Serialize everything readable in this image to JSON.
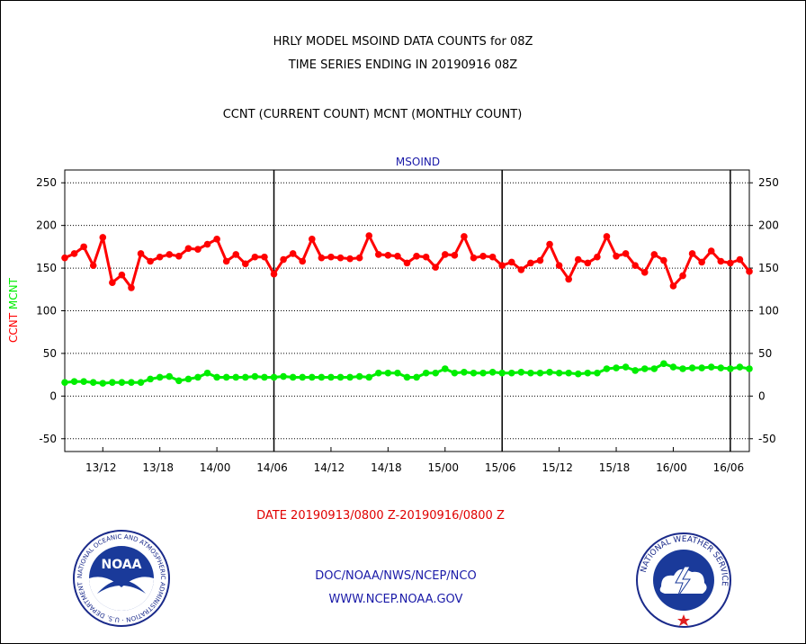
{
  "header": {
    "title_line1": "HRLY MODEL MSOIND DATA COUNTS for 08Z",
    "title_line2": "TIME SERIES ENDING IN 20190916 08Z",
    "subtitle": "CCNT (CURRENT COUNT) MCNT (MONTHLY COUNT)"
  },
  "footer": {
    "date_range": "DATE 20190913/0800 Z-20190916/0800 Z",
    "agency": "DOC/NOAA/NWS/NCEP/NCO",
    "website": "WWW.NCEP.NOAA.GOV"
  },
  "logos": {
    "noaa_text": "NOAA",
    "noaa_ring": "NATIONAL OCEANIC AND ATMOSPHERIC ADMINISTRATION · U.S. DEPARTMENT OF COMMERCE",
    "nws_ring": "NATIONAL WEATHER SERVICE"
  },
  "colors": {
    "ccnt": "#ff0000",
    "mcnt": "#00ee00",
    "title_blue": "#1a1aa8",
    "grid": "#000000"
  },
  "chart_data": {
    "type": "line",
    "title": "MSOIND",
    "ylabel_left_parts": [
      "CCNT",
      "MCNT"
    ],
    "ylim": [
      -65,
      265
    ],
    "yticks": [
      -50,
      0,
      50,
      100,
      150,
      200,
      250
    ],
    "grid": "dotted-horizontal",
    "xlim": [
      0,
      72
    ],
    "xticks": [
      {
        "x": 4,
        "label": "13/12"
      },
      {
        "x": 10,
        "label": "13/18"
      },
      {
        "x": 16,
        "label": "14/00"
      },
      {
        "x": 22,
        "label": "14/06"
      },
      {
        "x": 28,
        "label": "14/12"
      },
      {
        "x": 34,
        "label": "14/18"
      },
      {
        "x": 40,
        "label": "15/00"
      },
      {
        "x": 46,
        "label": "15/06"
      },
      {
        "x": 52,
        "label": "15/12"
      },
      {
        "x": 58,
        "label": "15/18"
      },
      {
        "x": 64,
        "label": "16/00"
      },
      {
        "x": 70,
        "label": "16/06"
      }
    ],
    "day_boundaries": [
      22,
      46,
      70
    ],
    "series": [
      {
        "name": "CCNT",
        "color": "#ff0000",
        "values": [
          162,
          167,
          175,
          153,
          186,
          133,
          142,
          127,
          167,
          158,
          163,
          166,
          164,
          173,
          172,
          178,
          184,
          158,
          166,
          155,
          163,
          163,
          143,
          160,
          167,
          158,
          184,
          162,
          163,
          162,
          161,
          162,
          188,
          166,
          165,
          164,
          156,
          164,
          163,
          151,
          166,
          165,
          187,
          162,
          164,
          163,
          153,
          157,
          148,
          156,
          159,
          178,
          153,
          137,
          160,
          156,
          163,
          187,
          164,
          167,
          153,
          145,
          166,
          159,
          129,
          141,
          167,
          157,
          170,
          158,
          156,
          160,
          146
        ]
      },
      {
        "name": "MCNT",
        "color": "#00ee00",
        "values": [
          16,
          17,
          17,
          16,
          15,
          16,
          16,
          16,
          16,
          20,
          22,
          23,
          18,
          20,
          22,
          27,
          22,
          22,
          22,
          22,
          23,
          22,
          22,
          23,
          22,
          22,
          22,
          22,
          22,
          22,
          22,
          23,
          22,
          27,
          27,
          27,
          22,
          22,
          27,
          27,
          32,
          27,
          28,
          27,
          27,
          28,
          27,
          27,
          28,
          27,
          27,
          28,
          27,
          27,
          26,
          27,
          27,
          32,
          33,
          34,
          30,
          32,
          32,
          38,
          34,
          32,
          33,
          33,
          34,
          33,
          32,
          34,
          32
        ]
      }
    ]
  }
}
